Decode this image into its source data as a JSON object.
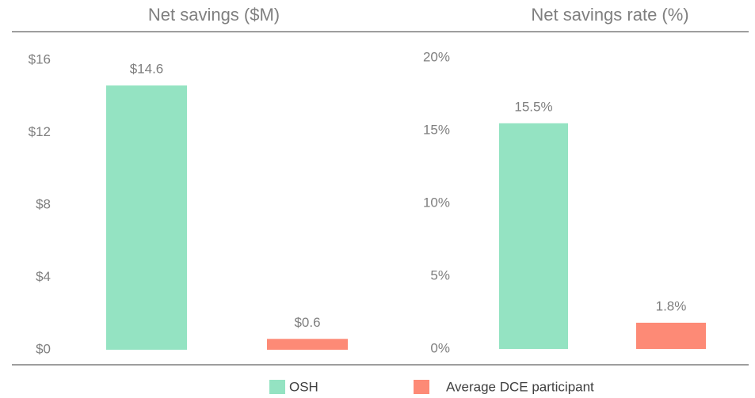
{
  "chart_data": [
    {
      "type": "bar",
      "title": "Net savings ($M)",
      "values": [
        14.6,
        0.6
      ],
      "value_labels": [
        "$14.6",
        "$0.6"
      ],
      "ylim": [
        0,
        16
      ],
      "yticks": [
        {
          "value": 0,
          "label": "$0"
        },
        {
          "value": 4,
          "label": "$4"
        },
        {
          "value": 8,
          "label": "$8"
        },
        {
          "value": 12,
          "label": "$12"
        },
        {
          "value": 16,
          "label": "$16"
        }
      ]
    },
    {
      "type": "bar",
      "title": "Net savings rate (%)",
      "values": [
        15.5,
        1.8
      ],
      "value_labels": [
        "15.5%",
        "1.8%"
      ],
      "ylim": [
        0,
        20
      ],
      "yticks": [
        {
          "value": 0,
          "label": "0%"
        },
        {
          "value": 5,
          "label": "5%"
        },
        {
          "value": 10,
          "label": "10%"
        },
        {
          "value": 15,
          "label": "15%"
        },
        {
          "value": 20,
          "label": "20%"
        }
      ]
    }
  ],
  "legend": {
    "items": [
      {
        "name": "OSH",
        "color": "#94e3c2"
      },
      {
        "name": "Average DCE participant",
        "color": "#fd8a76"
      }
    ]
  }
}
